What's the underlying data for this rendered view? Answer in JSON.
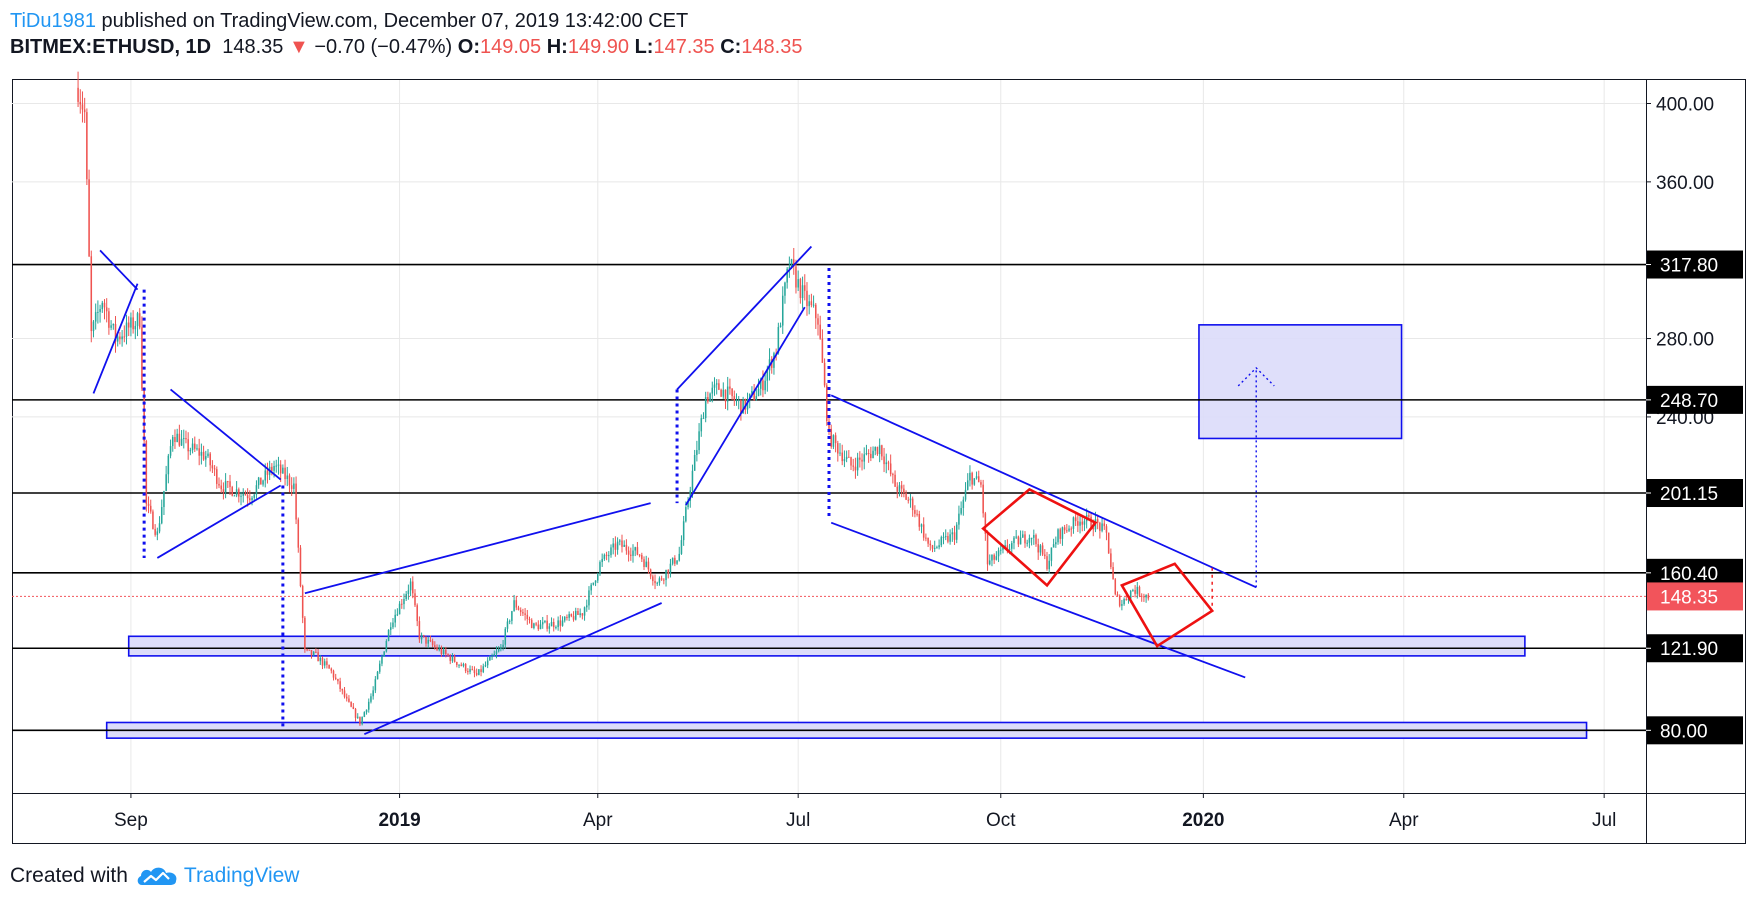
{
  "header": {
    "author": "TiDu1981",
    "published_text": "published on TradingView.com, December 07, 2019 13:42:00 CET",
    "symbol": "BITMEX:ETHUSD, 1D",
    "last": "148.35",
    "change_arrow": "▼",
    "change": "−0.70 (−0.47%)",
    "o_label": "O:",
    "o": "149.05",
    "h_label": "H:",
    "h": "149.90",
    "l_label": "L:",
    "l": "147.35",
    "c_label": "C:",
    "c": "148.35"
  },
  "footer": {
    "created_with": "Created with",
    "brand": "TradingView",
    "logo_icon": "tradingview-cloud-icon"
  },
  "colors": {
    "up": "#26a69a",
    "down": "#ef5350",
    "pattern_blue": "#1010ee",
    "pattern_red": "#ee1111",
    "zone_fill": "#dcdcfa",
    "level_line": "#000000",
    "last_price": "#f2545b"
  },
  "chart_data": {
    "type": "candlestick",
    "symbol": "BITMEX:ETHUSD",
    "interval": "1D",
    "y_axis_position": "right",
    "ylim": [
      48,
      412
    ],
    "y_ticks": [
      "400.00",
      "360.00",
      "280.00",
      "240.00"
    ],
    "x_ticks": [
      {
        "label": "Sep",
        "date": "2018-09-01",
        "bold": false
      },
      {
        "label": "2019",
        "date": "2019-01-01",
        "bold": true
      },
      {
        "label": "Apr",
        "date": "2019-04-01",
        "bold": false
      },
      {
        "label": "Jul",
        "date": "2019-07-01",
        "bold": false
      },
      {
        "label": "Oct",
        "date": "2019-10-01",
        "bold": false
      },
      {
        "label": "2020",
        "date": "2020-01-01",
        "bold": true
      },
      {
        "label": "Apr",
        "date": "2020-04-01",
        "bold": false
      },
      {
        "label": "Jul",
        "date": "2020-07-01",
        "bold": false
      }
    ],
    "x_range": [
      "2018-07-09",
      "2020-07-20"
    ],
    "horizontal_levels": [
      {
        "label": "317.80",
        "value": 317.8
      },
      {
        "label": "248.70",
        "value": 248.7
      },
      {
        "label": "201.15",
        "value": 201.15
      },
      {
        "label": "160.40",
        "value": 160.4
      },
      {
        "label": "121.90",
        "value": 121.9
      },
      {
        "label": "80.00",
        "value": 80.0
      }
    ],
    "last_price": {
      "label": "148.35",
      "value": 148.35
    },
    "price_path": [
      [
        "2018-08-08",
        408
      ],
      [
        "2018-08-11",
        395
      ],
      [
        "2018-08-14",
        282
      ],
      [
        "2018-08-19",
        300
      ],
      [
        "2018-08-25",
        280
      ],
      [
        "2018-09-05",
        290
      ],
      [
        "2018-09-08",
        195
      ],
      [
        "2018-09-13",
        180
      ],
      [
        "2018-09-20",
        232
      ],
      [
        "2018-09-26",
        225
      ],
      [
        "2018-10-05",
        220
      ],
      [
        "2018-10-12",
        205
      ],
      [
        "2018-10-25",
        200
      ],
      [
        "2018-11-05",
        215
      ],
      [
        "2018-11-14",
        205
      ],
      [
        "2018-11-19",
        120
      ],
      [
        "2018-11-24",
        118
      ],
      [
        "2018-12-01",
        110
      ],
      [
        "2018-12-08",
        95
      ],
      [
        "2018-12-14",
        84
      ],
      [
        "2018-12-20",
        100
      ],
      [
        "2018-12-28",
        135
      ],
      [
        "2019-01-06",
        155
      ],
      [
        "2019-01-10",
        128
      ],
      [
        "2019-01-20",
        120
      ],
      [
        "2019-02-05",
        108
      ],
      [
        "2019-02-16",
        122
      ],
      [
        "2019-02-22",
        145
      ],
      [
        "2019-03-03",
        133
      ],
      [
        "2019-03-15",
        135
      ],
      [
        "2019-03-25",
        140
      ],
      [
        "2019-04-02",
        165
      ],
      [
        "2019-04-10",
        175
      ],
      [
        "2019-04-20",
        170
      ],
      [
        "2019-04-28",
        155
      ],
      [
        "2019-05-08",
        170
      ],
      [
        "2019-05-13",
        205
      ],
      [
        "2019-05-20",
        250
      ],
      [
        "2019-05-26",
        255
      ],
      [
        "2019-06-06",
        245
      ],
      [
        "2019-06-14",
        255
      ],
      [
        "2019-06-21",
        275
      ],
      [
        "2019-06-25",
        305
      ],
      [
        "2019-06-27",
        318
      ],
      [
        "2019-07-04",
        300
      ],
      [
        "2019-07-10",
        290
      ],
      [
        "2019-07-15",
        230
      ],
      [
        "2019-07-25",
        215
      ],
      [
        "2019-08-01",
        220
      ],
      [
        "2019-08-07",
        225
      ],
      [
        "2019-08-14",
        205
      ],
      [
        "2019-08-22",
        195
      ],
      [
        "2019-08-30",
        172
      ],
      [
        "2019-09-10",
        180
      ],
      [
        "2019-09-17",
        210
      ],
      [
        "2019-09-22",
        205
      ],
      [
        "2019-09-25",
        165
      ],
      [
        "2019-10-06",
        175
      ],
      [
        "2019-10-15",
        180
      ],
      [
        "2019-10-22",
        165
      ],
      [
        "2019-10-27",
        180
      ],
      [
        "2019-11-06",
        188
      ],
      [
        "2019-11-14",
        185
      ],
      [
        "2019-11-18",
        180
      ],
      [
        "2019-11-22",
        148
      ],
      [
        "2019-11-25",
        145
      ],
      [
        "2019-11-30",
        152
      ],
      [
        "2019-12-07",
        148.35
      ]
    ],
    "drawings": [
      {
        "type": "trendline",
        "color": "blue",
        "points": [
          [
            "2018-08-15",
            252
          ],
          [
            "2018-09-04",
            308
          ]
        ]
      },
      {
        "type": "trendline",
        "color": "blue",
        "points": [
          [
            "2018-08-18",
            325
          ],
          [
            "2018-09-04",
            305
          ]
        ]
      },
      {
        "type": "trendline",
        "color": "blue",
        "points": [
          [
            "2018-09-13",
            168
          ],
          [
            "2018-11-08",
            205
          ]
        ]
      },
      {
        "type": "trendline",
        "color": "blue",
        "points": [
          [
            "2018-09-19",
            254
          ],
          [
            "2018-11-08",
            208
          ]
        ]
      },
      {
        "type": "trendline",
        "color": "blue",
        "points": [
          [
            "2018-11-19",
            150
          ],
          [
            "2019-04-25",
            196
          ]
        ]
      },
      {
        "type": "trendline",
        "color": "blue",
        "points": [
          [
            "2018-12-16",
            78
          ],
          [
            "2019-04-30",
            145
          ]
        ]
      },
      {
        "type": "trendline",
        "color": "blue",
        "points": [
          [
            "2019-05-07",
            254
          ],
          [
            "2019-07-07",
            327
          ]
        ]
      },
      {
        "type": "trendline",
        "color": "blue",
        "points": [
          [
            "2019-05-11",
            195
          ],
          [
            "2019-07-04",
            296
          ]
        ]
      },
      {
        "type": "trendline",
        "color": "blue",
        "points": [
          [
            "2019-07-16",
            251
          ],
          [
            "2020-01-25",
            153
          ]
        ]
      },
      {
        "type": "trendline",
        "color": "blue",
        "points": [
          [
            "2019-07-16",
            186
          ],
          [
            "2020-01-20",
            107
          ]
        ]
      },
      {
        "type": "measure",
        "color": "blue",
        "points": [
          [
            "2018-09-07",
            305
          ],
          [
            "2018-09-07",
            168
          ]
        ]
      },
      {
        "type": "measure",
        "color": "blue",
        "points": [
          [
            "2018-11-09",
            205
          ],
          [
            "2018-11-09",
            82
          ]
        ]
      },
      {
        "type": "measure",
        "color": "blue",
        "points": [
          [
            "2019-05-07",
            254
          ],
          [
            "2019-05-07",
            196
          ]
        ]
      },
      {
        "type": "measure",
        "color": "blue",
        "points": [
          [
            "2019-07-15",
            316
          ],
          [
            "2019-07-15",
            189
          ]
        ]
      },
      {
        "type": "measure",
        "color": "red",
        "points": [
          [
            "2020-01-05",
            163
          ],
          [
            "2020-01-05",
            141
          ]
        ]
      },
      {
        "type": "arrow",
        "color": "blue",
        "points": [
          [
            "2020-01-25",
            153
          ],
          [
            "2020-01-25",
            265
          ]
        ]
      },
      {
        "type": "rhombus",
        "color": "red",
        "points": [
          [
            "2019-09-23",
            183
          ],
          [
            "2019-10-14",
            203
          ],
          [
            "2019-11-13",
            186
          ],
          [
            "2019-10-22",
            154
          ]
        ]
      },
      {
        "type": "rhombus",
        "color": "red",
        "points": [
          [
            "2019-11-25",
            154
          ],
          [
            "2019-12-19",
            165
          ],
          [
            "2020-01-05",
            141
          ],
          [
            "2019-12-11",
            123
          ]
        ]
      },
      {
        "type": "zone",
        "points": [
          [
            "2018-08-31",
            128
          ],
          [
            "2020-05-26",
            118
          ]
        ]
      },
      {
        "type": "zone",
        "points": [
          [
            "2018-08-21",
            84
          ],
          [
            "2020-06-23",
            76
          ]
        ]
      },
      {
        "type": "target_zone",
        "points": [
          [
            "2019-12-30",
            287
          ],
          [
            "2020-03-31",
            229
          ]
        ]
      }
    ]
  }
}
